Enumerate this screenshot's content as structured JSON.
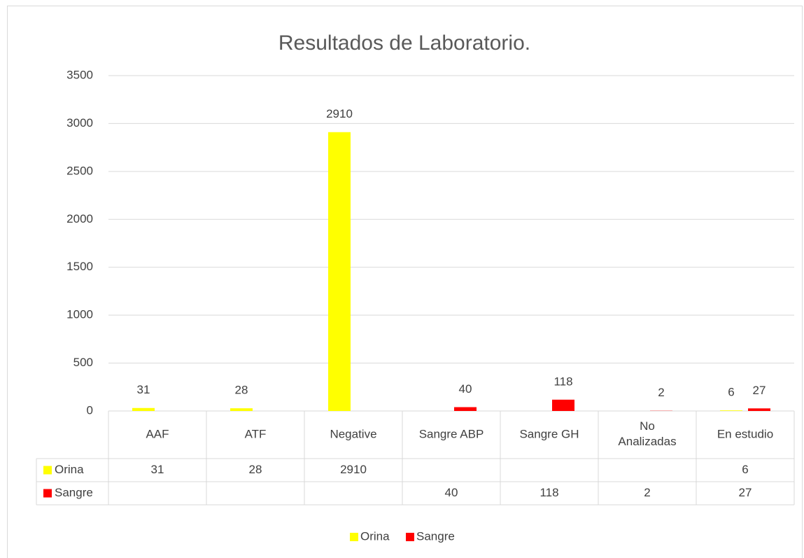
{
  "chart_data": {
    "type": "bar",
    "title": "Resultados de Laboratorio.",
    "categories": [
      "AAF",
      "ATF",
      "Negative",
      "Sangre ABP",
      "Sangre GH",
      "No Analizadas",
      "En estudio"
    ],
    "series": [
      {
        "name": "Orina",
        "color": "#ffff00",
        "values": [
          31,
          28,
          2910,
          null,
          null,
          null,
          6
        ]
      },
      {
        "name": "Sangre",
        "color": "#ff0000",
        "values": [
          null,
          null,
          null,
          40,
          118,
          2,
          27
        ]
      }
    ],
    "ylim": [
      0,
      3500
    ],
    "yticks": [
      0,
      500,
      1000,
      1500,
      2000,
      2500,
      3000,
      3500
    ],
    "grid": true,
    "legend": "bottom",
    "data_table": true
  }
}
